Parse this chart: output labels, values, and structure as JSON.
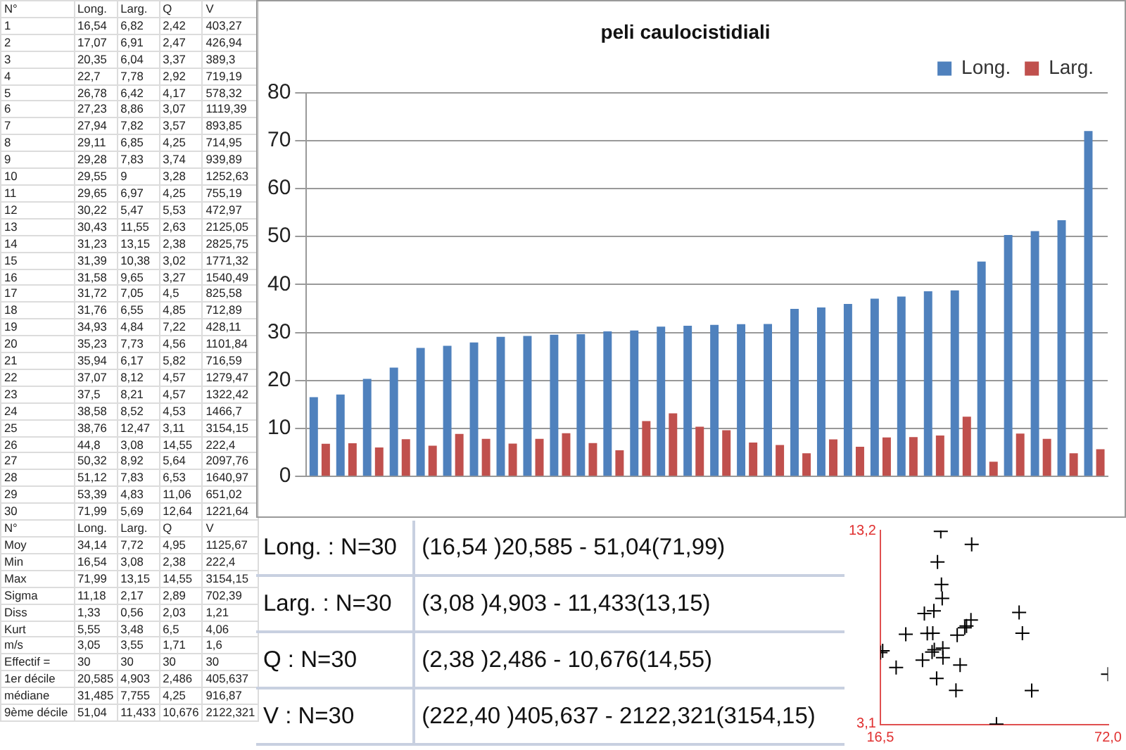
{
  "chart_data": [
    {
      "type": "other",
      "annotations": [
        "N°\tLong.\tLarg.\tQ\tV",
        "1\t16,54\t6,82\t2,42\t403,27",
        "2\t17,07\t6,91\t2,47\t426,94",
        "3\t20,35\t6,04\t3,37\t389,3",
        "4\t22,7\t7,78\t2,92\t719,19",
        "5\t26,78\t6,42\t4,17\t578,32",
        "6\t27,23\t8,86\t3,07\t1119,39",
        "7\t27,94\t7,82\t3,57\t893,85",
        "8\t29,11\t6,85\t4,25\t714,95",
        "9\t29,28\t7,83\t3,74\t939,89",
        "10\t29,55\t9\t3,28\t1252,63",
        "11\t29,65\t6,97\t4,25\t755,19",
        "12\t30,22\t5,47\t5,53\t472,97",
        "13\t30,43\t11,55\t2,63\t2125,05",
        "14\t31,23\t13,15\t2,38\t2825,75",
        "15\t31,39\t10,38\t3,02\t1771,32",
        "16\t31,58\t9,65\t3,27\t1540,49",
        "17\t31,72\t7,05\t4,5\t825,58",
        "18\t31,76\t6,55\t4,85\t712,89",
        "19\t34,93\t4,84\t7,22\t428,11",
        "20\t35,23\t7,73\t4,56\t1101,84",
        "21\t35,94\t6,17\t5,82\t716,59",
        "22\t37,07\t8,12\t4,57\t1279,47",
        "23\t37,5\t8,21\t4,57\t1322,42",
        "24\t38,58\t8,52\t4,53\t1466,7",
        "25\t38,76\t12,47\t3,11\t3154,15",
        "26\t44,8\t3,08\t14,55\t222,4",
        "27\t50,32\t8,92\t5,64\t2097,76",
        "28\t51,12\t7,83\t6,53\t1640,97",
        "29\t53,39\t4,83\t11,06\t651,02",
        "30\t71,99\t5,69\t12,64\t1221,64",
        "N°\tLong.\tLarg.\tQ\tV",
        "Moy\t34,14\t7,72\t4,95\t1125,67",
        "Min\t16,54\t3,08\t2,38\t222,4",
        "Max\t71,99\t13,15\t14,55\t3154,15",
        "Sigma\t11,18\t2,17\t2,89\t702,39",
        "Diss\t1,33\t0,56\t2,03\t1,21",
        "Kurt\t5,55\t3,48\t6,5\t4,06",
        "m/s\t3,05\t3,55\t1,71\t1,6",
        "Effectif =\t30\t30\t30\t30",
        "1er décile\t20,585\t4,903\t2,486\t405,637",
        "médiane\t31,485\t7,755\t4,25\t916,87",
        "9ème décile\t51,04\t11,433\t10,676\t2122,321"
      ]
    },
    {
      "type": "bar",
      "title": "peli caulocistidiali",
      "categories": [
        null,
        null,
        null,
        null,
        null,
        null,
        null,
        null,
        null,
        null,
        null,
        null,
        null,
        null,
        null,
        null,
        null,
        null,
        null,
        null,
        null,
        null,
        null,
        null,
        null,
        null,
        null,
        null,
        null,
        null
      ],
      "series": [
        {
          "name": "Long.",
          "color": "#4f81bd",
          "values": [
            16.54,
            17.07,
            20.35,
            22.7,
            26.78,
            27.23,
            27.94,
            29.11,
            29.28,
            29.55,
            29.65,
            30.22,
            30.43,
            31.23,
            31.39,
            31.58,
            31.72,
            31.76,
            34.93,
            35.23,
            35.94,
            37.07,
            37.5,
            38.58,
            38.76,
            44.8,
            50.32,
            51.12,
            53.39,
            71.99
          ]
        },
        {
          "name": "Larg.",
          "color": "#c0504d",
          "values": [
            6.82,
            6.91,
            6.04,
            7.78,
            6.42,
            8.86,
            7.82,
            6.85,
            7.83,
            9,
            6.97,
            5.47,
            11.55,
            13.15,
            10.38,
            9.65,
            7.05,
            6.55,
            4.84,
            7.73,
            6.17,
            8.12,
            8.21,
            8.52,
            12.47,
            3.08,
            8.92,
            7.83,
            4.83,
            5.69
          ]
        }
      ],
      "ylim": [
        0,
        80
      ],
      "yticks": [
        0,
        10,
        20,
        30,
        40,
        50,
        60,
        70,
        80
      ],
      "grid": "y",
      "legend": "top right"
    },
    {
      "type": "other",
      "annotations": [
        "Long. : N=30\t(16,54 )20,585 - 51,04(71,99)",
        "Larg. : N=30\t(3,08 )4,903 - 11,433(13,15)",
        "Q : N=30\t(2,38 )2,486 - 10,676(14,55)",
        "V : N=30\t(222,40 )405,637 - 2122,321(3154,15)"
      ]
    },
    {
      "type": "scatter",
      "marker": "cross",
      "series": [
        {
          "color": "#000000",
          "x": [
            16.54,
            17.07,
            20.35,
            22.7,
            26.78,
            27.23,
            27.94,
            29.11,
            29.28,
            29.55,
            29.65,
            30.22,
            30.43,
            31.23,
            31.39,
            31.58,
            31.72,
            31.76,
            34.93,
            35.23,
            35.94,
            37.07,
            37.5,
            38.58,
            38.76,
            44.8,
            50.32,
            51.12,
            53.39,
            71.99
          ],
          "values": [
            6.82,
            6.91,
            6.04,
            7.78,
            6.42,
            8.86,
            7.82,
            6.85,
            7.83,
            9,
            6.97,
            5.47,
            11.55,
            13.15,
            10.38,
            9.65,
            7.05,
            6.55,
            4.84,
            7.73,
            6.17,
            8.12,
            8.21,
            8.52,
            12.47,
            3.08,
            8.92,
            7.83,
            4.83,
            5.69
          ]
        }
      ],
      "xlim": [
        16.5,
        72.0
      ],
      "xticks": [
        {
          "value": 16.5,
          "label": "16,5"
        },
        {
          "value": 72.0,
          "label": "72,0"
        }
      ],
      "ylim": [
        3.05,
        13.2
      ],
      "yticks": [
        {
          "value": 3.1,
          "label": "3,1"
        },
        {
          "value": 13.2,
          "label": "13,2"
        }
      ],
      "grid": false,
      "legend": false
    }
  ]
}
